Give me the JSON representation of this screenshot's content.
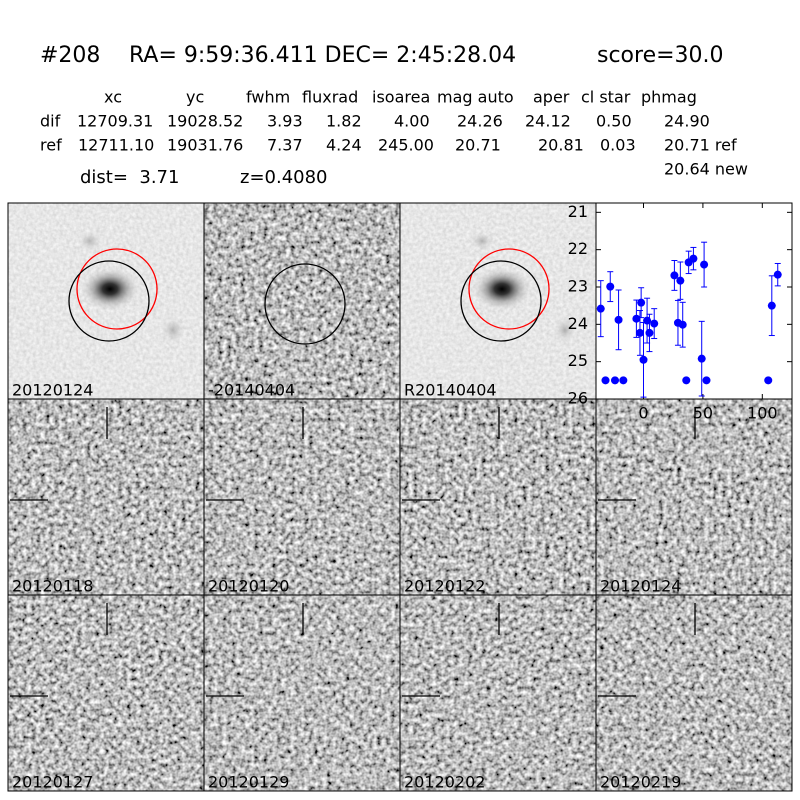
{
  "header": {
    "id": "#208",
    "coords": "RA= 9:59:36.411 DEC= 2:45:28.04",
    "score": "score=30.0"
  },
  "table": {
    "columns": [
      "xc",
      "yc",
      "fwhm",
      "fluxrad",
      "isoarea",
      "mag auto",
      "aper",
      "cl star",
      "phmag"
    ],
    "rows": [
      [
        "dif",
        "12709.31",
        "19028.52",
        "3.93",
        "1.82",
        "4.00",
        "24.26",
        "24.12",
        "0.50",
        "24.90"
      ],
      [
        "ref",
        "12711.10",
        "19031.76",
        "7.37",
        "4.24",
        "245.00",
        "20.71",
        "20.81",
        "0.03",
        "20.71 ref"
      ]
    ],
    "extra": "20.64 new"
  },
  "info": {
    "dist": "dist=  3.71",
    "z": "z=0.4080"
  },
  "stamps": [
    {
      "label": "20120124"
    },
    {
      "label": "-20140404"
    },
    {
      "label": "R20140404"
    },
    {
      "label": "20120118"
    },
    {
      "label": "20120120"
    },
    {
      "label": "20120122"
    },
    {
      "label": "20120124",
      "color": "#ff0000"
    },
    {
      "label": "20120127"
    },
    {
      "label": "20120129"
    },
    {
      "label": "20120202"
    },
    {
      "label": "20120219"
    }
  ],
  "chart_data": {
    "type": "scatter",
    "color": "#0000ff",
    "x": [
      -36,
      -32,
      -28,
      -24,
      -21,
      -17,
      -6,
      -3,
      -2,
      0,
      3,
      5,
      9,
      26,
      29,
      31,
      33,
      36,
      38,
      42,
      49,
      51,
      53,
      105,
      108,
      113
    ],
    "y": [
      23.58,
      25.5,
      22.99,
      25.5,
      23.88,
      25.5,
      23.85,
      24.23,
      23.42,
      24.95,
      23.9,
      24.23,
      23.98,
      22.69,
      23.96,
      22.83,
      24.01,
      25.5,
      22.34,
      22.24,
      24.92,
      22.4,
      25.5,
      25.5,
      23.5,
      22.67
    ],
    "errors": [
      0.75,
      null,
      0.4,
      null,
      0.8,
      null,
      0.5,
      0.6,
      0.4,
      1.0,
      0.6,
      0.5,
      0.4,
      0.4,
      0.6,
      0.5,
      0.6,
      null,
      0.3,
      0.3,
      1.0,
      0.6,
      null,
      null,
      0.8,
      0.3
    ],
    "xlim": [
      -40,
      125
    ],
    "xticks": [
      0,
      50,
      100
    ],
    "ylim": [
      20.75,
      26
    ],
    "yticks": [
      21,
      22,
      23,
      24,
      25,
      26
    ],
    "y_inverted": true
  }
}
